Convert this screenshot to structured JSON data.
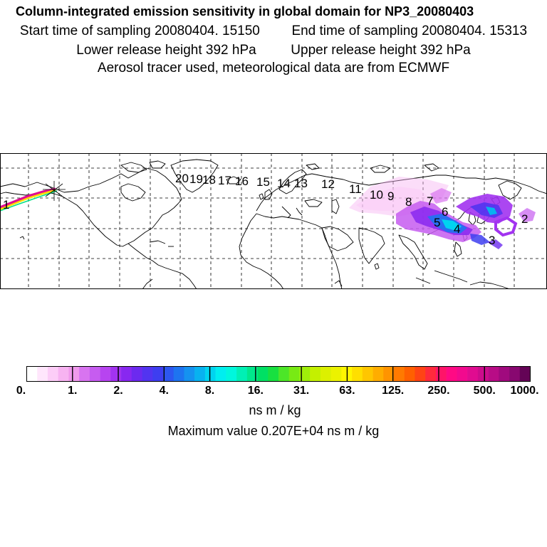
{
  "header": {
    "title": "Column-integrated emission sensitivity in global domain for NP3_20080403",
    "start_label": "Start time of sampling 20080404. 15150",
    "end_label": "End time of sampling 20080404. 15313",
    "lower_label": "Lower release height  392 hPa",
    "upper_label": "Upper release height  392 hPa",
    "tracer_label": "Aerosol tracer used, meteorological data are from ECMWF"
  },
  "map": {
    "projection": "lat-lon global",
    "gridlines": "dashed",
    "time_markers": [
      "1",
      "2",
      "3",
      "4",
      "5",
      "6",
      "7",
      "8",
      "9",
      "10",
      "11",
      "12",
      "13",
      "14",
      "15",
      "16",
      "17",
      "18",
      "19",
      "20"
    ]
  },
  "colorbar": {
    "tick_labels": [
      "0.",
      "1.",
      "2.",
      "4.",
      "8.",
      "16.",
      "31.",
      "63.",
      "125.",
      "250.",
      "500.",
      "1000."
    ],
    "colors": [
      "#ffffff",
      "#ffe6fc",
      "#fccdf7",
      "#f7b3f1",
      "#f09aec",
      "#d874f0",
      "#c65cf0",
      "#b744f0",
      "#a233f0",
      "#8828f0",
      "#6c2aef",
      "#5234f0",
      "#3e3ef0",
      "#2d57f0",
      "#1e74f0",
      "#1592f0",
      "#08b2f0",
      "#00d4f0",
      "#00eef0",
      "#00f7dd",
      "#00f0b5",
      "#00e88c",
      "#00e064",
      "#18e040",
      "#4ce628",
      "#78ea14",
      "#a0ee0a",
      "#c4f000",
      "#dcf000",
      "#ecf200",
      "#fff700",
      "#ffdf00",
      "#ffc600",
      "#ffad00",
      "#ff9400",
      "#ff7a00",
      "#ff6000",
      "#ff4414",
      "#ff2a3c",
      "#ff1468",
      "#ff0a84",
      "#f20a8e",
      "#e00c90",
      "#cc0c8c",
      "#b80c86",
      "#a00a7e",
      "#880870",
      "#640456"
    ],
    "units": "ns m / kg"
  },
  "footer": {
    "max_label": "Maximum value  0.207E+04 ns m / kg"
  }
}
